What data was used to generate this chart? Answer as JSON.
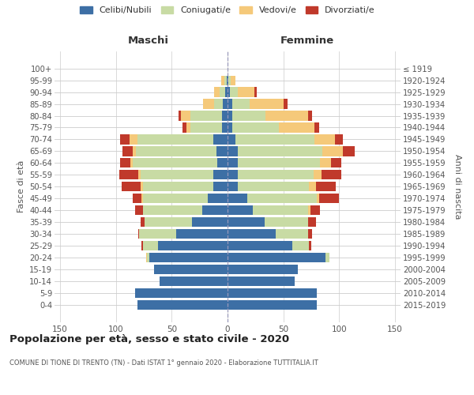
{
  "age_groups": [
    "100+",
    "95-99",
    "90-94",
    "85-89",
    "80-84",
    "75-79",
    "70-74",
    "65-69",
    "60-64",
    "55-59",
    "50-54",
    "45-49",
    "40-44",
    "35-39",
    "30-34",
    "25-29",
    "20-24",
    "15-19",
    "10-14",
    "5-9",
    "0-4"
  ],
  "birth_years": [
    "≤ 1919",
    "1920-1924",
    "1925-1929",
    "1930-1934",
    "1935-1939",
    "1940-1944",
    "1945-1949",
    "1950-1954",
    "1955-1959",
    "1960-1964",
    "1965-1969",
    "1970-1974",
    "1975-1979",
    "1980-1984",
    "1985-1989",
    "1990-1994",
    "1995-1999",
    "2000-2004",
    "2005-2009",
    "2010-2014",
    "2015-2019"
  ],
  "colors": {
    "celibi": "#3d6fa5",
    "coniugati": "#c8dba4",
    "vedovi": "#f5c97a",
    "divorziati": "#c0392b"
  },
  "maschi": {
    "celibi": [
      0,
      1,
      2,
      4,
      5,
      5,
      13,
      10,
      9,
      13,
      13,
      18,
      23,
      32,
      46,
      62,
      70,
      66,
      61,
      83,
      81
    ],
    "coniugati": [
      0,
      2,
      5,
      8,
      28,
      28,
      68,
      72,
      76,
      65,
      63,
      58,
      53,
      42,
      33,
      14,
      2,
      0,
      0,
      0,
      0
    ],
    "vedovi": [
      0,
      3,
      5,
      10,
      9,
      4,
      7,
      3,
      2,
      2,
      2,
      1,
      0,
      0,
      0,
      0,
      1,
      0,
      0,
      0,
      0
    ],
    "divorziati": [
      0,
      0,
      0,
      0,
      2,
      3,
      8,
      9,
      9,
      17,
      17,
      8,
      7,
      4,
      1,
      1,
      0,
      0,
      0,
      0,
      0
    ]
  },
  "femmine": {
    "celibi": [
      0,
      1,
      2,
      4,
      4,
      4,
      7,
      9,
      9,
      9,
      9,
      18,
      23,
      33,
      43,
      58,
      88,
      63,
      60,
      80,
      80
    ],
    "coniugati": [
      0,
      2,
      7,
      16,
      30,
      42,
      71,
      76,
      74,
      68,
      64,
      62,
      49,
      39,
      29,
      15,
      3,
      0,
      0,
      0,
      0
    ],
    "vedovi": [
      0,
      4,
      15,
      30,
      38,
      32,
      18,
      18,
      10,
      7,
      6,
      2,
      2,
      0,
      0,
      0,
      0,
      0,
      0,
      0,
      0
    ],
    "divorziati": [
      0,
      0,
      2,
      4,
      4,
      4,
      7,
      11,
      9,
      18,
      18,
      18,
      9,
      7,
      4,
      2,
      0,
      0,
      0,
      0,
      0
    ]
  },
  "title": "Popolazione per età, sesso e stato civile - 2020",
  "subtitle": "COMUNE DI TIONE DI TRENTO (TN) - Dati ISTAT 1° gennaio 2020 - Elaborazione TUTTITALIA.IT",
  "xlabel_left": "Maschi",
  "xlabel_right": "Femmine",
  "ylabel_left": "Fasce di età",
  "ylabel_right": "Anni di nascita",
  "xlim": 155,
  "legend_labels": [
    "Celibi/Nubili",
    "Coniugati/e",
    "Vedovi/e",
    "Divorziati/e"
  ],
  "bg_color": "#ffffff",
  "grid_color": "#cccccc",
  "xticks_raw": [
    -150,
    -100,
    -50,
    0,
    50,
    100,
    150
  ],
  "xtick_labels": [
    "150",
    "100",
    "50",
    "0",
    "50",
    "100",
    "150"
  ]
}
